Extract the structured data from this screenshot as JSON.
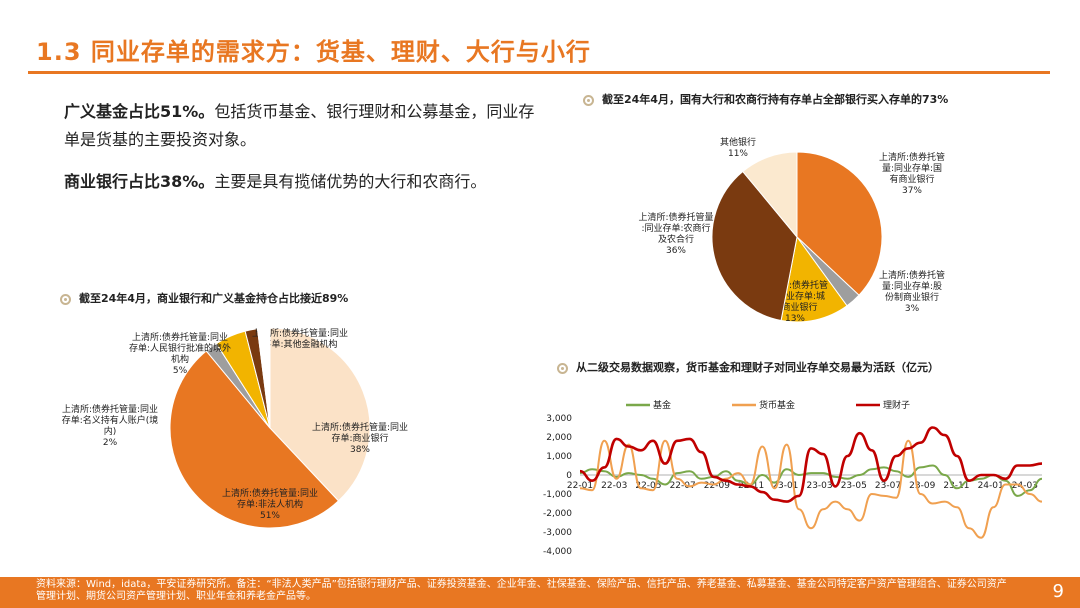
{
  "page": {
    "title": "1.3 同业存单的需求方：货基、理财、大行与小行",
    "footer": "资料来源：Wind，idata，平安证券研究所。备注：“非法人类产品”包括银行理财产品、证券投资基金、企业年金、社保基金、保险产品、信托产品、养老基金、私募基金、基金公司特定客户资产管理组合、证券公司资产管理计划、期货公司资产管理计划、职业年金和养老金产品等。",
    "page_number": "9"
  },
  "bullets": [
    {
      "bold": "广义基金占比51%。",
      "text": "包括货币基金、银行理财和公募基金，同业存单是货基的主要投资对象。"
    },
    {
      "bold": "商业银行占比38%。",
      "text": "主要是具有揽储优势的大行和农商行。"
    }
  ],
  "chart_data": [
    {
      "type": "pie",
      "caption": "截至24年4月，商业银行和广义基金持仓占比接近89%",
      "slices": [
        {
          "name": "上清所:债券托管量:同业存单:商业银行",
          "pct": "38%",
          "value": 38,
          "color": "#fbe2c7"
        },
        {
          "name": "上清所:债券托管量:同业存单:非法人机构",
          "pct": "51%",
          "value": 51,
          "color": "#e87722"
        },
        {
          "name": "上清所:债券托管量:同业存单:名义持有人账户(境内)",
          "pct": "2%",
          "value": 2,
          "color": "#9e9e9e"
        },
        {
          "name": "上清所:债券托管量:同业存单:人民银行批准的境外机构",
          "pct": "5%",
          "value": 5,
          "color": "#f2b400"
        },
        {
          "name": "上清所:债券托管量:同业存单:其他金融机构",
          "pct": "",
          "value": 2,
          "color": "#7a3a10"
        },
        {
          "name": "",
          "pct": "",
          "value": 2,
          "color": "#ffffff"
        }
      ]
    },
    {
      "type": "pie",
      "caption": "截至24年4月，国有大行和农商行持有存单占全部银行买入存单的73%",
      "slices": [
        {
          "name": "上清所:债券托管量:同业存单:国有商业银行",
          "pct": "37%",
          "value": 37,
          "color": "#e87722"
        },
        {
          "name": "上清所:债券托管量:同业存单:股份制商业银行",
          "pct": "3%",
          "value": 3,
          "color": "#9e9e9e"
        },
        {
          "name": "上清所:债券托管量:同业存单:城市商业银行",
          "pct": "13%",
          "value": 13,
          "color": "#f2b400"
        },
        {
          "name": "上清所:债券托管量:同业存单:农商行及农合行",
          "pct": "36%",
          "value": 36,
          "color": "#7a3a10"
        },
        {
          "name": "其他银行",
          "pct": "11%",
          "value": 11,
          "color": "#fbe9cf"
        }
      ]
    },
    {
      "type": "line",
      "caption": "从二级交易数据观察，货币基金和理财子对同业存单交易最为活跃（亿元）",
      "ylim": [
        -4000,
        3000
      ],
      "yticks": [
        "3,000",
        "2,000",
        "1,000",
        "0",
        "-1,000",
        "-2,000",
        "-3,000",
        "-4,000"
      ],
      "ytick_values": [
        3000,
        2000,
        1000,
        0,
        -1000,
        -2000,
        -3000,
        -4000
      ],
      "xticks": [
        "22-01",
        "22-03",
        "22-05",
        "22-07",
        "22-09",
        "22-11",
        "23-01",
        "23-03",
        "23-05",
        "23-07",
        "23-09",
        "23-11",
        "24-01",
        "24-03"
      ],
      "series": [
        {
          "name": "基金",
          "color": "#7aa84a",
          "values": [
            100,
            300,
            200,
            -100,
            100,
            0,
            -200,
            -500,
            100,
            200,
            -200,
            -100,
            200,
            -300,
            -500,
            0,
            -400,
            300,
            0,
            100,
            100,
            -100,
            -200,
            0,
            300,
            400,
            200,
            -100,
            400,
            500,
            0,
            -700,
            -300,
            -200,
            0,
            -300,
            -1100,
            -800,
            -200
          ]
        },
        {
          "name": "货币基金",
          "color": "#f0a050",
          "values": [
            -700,
            -800,
            1800,
            -200,
            1600,
            -700,
            -800,
            1800,
            -200,
            -600,
            -400,
            -500,
            -200,
            100,
            -500,
            1500,
            -700,
            1600,
            -1800,
            -2800,
            -1800,
            -1400,
            -1800,
            -2400,
            -1000,
            -1100,
            -1200,
            1800,
            -1000,
            -1500,
            -1400,
            -1700,
            -2800,
            -3300,
            -1700,
            -500,
            -500,
            -1000,
            -1400
          ]
        },
        {
          "name": "理财子",
          "color": "#c00000",
          "values": [
            200,
            -300,
            400,
            1900,
            1500,
            1300,
            1800,
            600,
            1800,
            1900,
            1200,
            -100,
            -300,
            -500,
            -600,
            -900,
            -1300,
            -1400,
            -1100,
            1400,
            1100,
            -600,
            1000,
            2200,
            1300,
            -300,
            1000,
            1400,
            1700,
            2500,
            2100,
            1000,
            -300,
            0,
            0,
            -200,
            500,
            500,
            600
          ]
        }
      ]
    }
  ]
}
